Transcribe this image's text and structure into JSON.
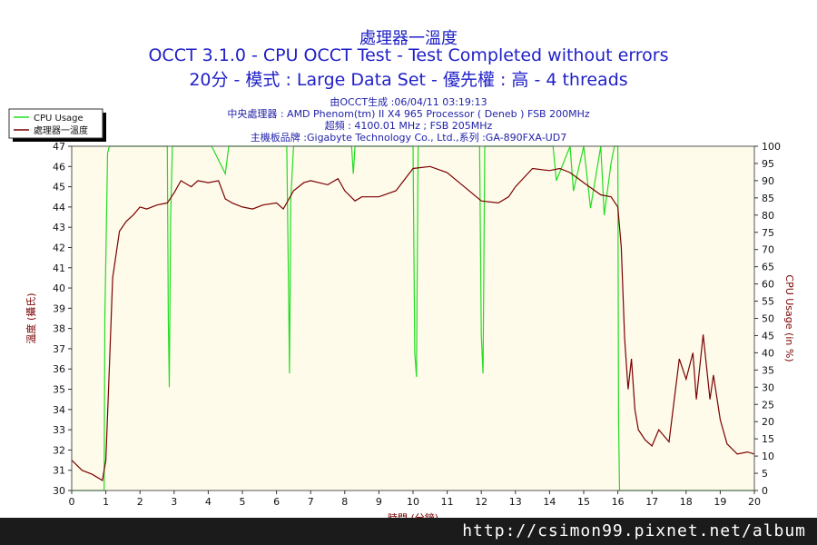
{
  "header": {
    "line1": "處理器一溫度",
    "line2": "OCCT 3.1.0 - CPU OCCT Test - Test Completed without errors",
    "line3": "20分 - 模式 : Large Data Set - 優先權 : 高 - 4 threads"
  },
  "info": {
    "generated": "由OCCT生成 :06/04/11 03:19:13",
    "cpu": "中央處理器 : AMD Phenom(tm) II X4 965 Processor ( Deneb ) FSB 200MHz",
    "clock": "超頻 : 4100.01 MHz ; FSB 205MHz",
    "board": "主機板品牌 :Gigabyte Technology Co., Ltd.,系列 :GA-890FXA-UD7"
  },
  "watermark": "http://csimon99.pixnet.net/album",
  "chart_data": {
    "type": "line",
    "xlabel": "時間 (分鐘)",
    "ylabel_left": "溫度 (攝氏)",
    "ylabel_right": "CPU Usage (in %)",
    "xlim": [
      0,
      20
    ],
    "ylim_left": [
      30,
      47
    ],
    "ylim_right": [
      0,
      100
    ],
    "grid": false,
    "legend_position": "top-left",
    "background_color": "#fffbea",
    "x_ticks": [
      "0",
      "1",
      "2",
      "3",
      "4",
      "5",
      "6",
      "7",
      "8",
      "9",
      "10",
      "11",
      "12",
      "13",
      "14",
      "15",
      "16",
      "17",
      "18",
      "19",
      "20"
    ],
    "left_ticks": [
      "30",
      "31",
      "32",
      "33",
      "34",
      "35",
      "36",
      "37",
      "38",
      "39",
      "40",
      "41",
      "42",
      "43",
      "44",
      "45",
      "46",
      "47"
    ],
    "right_ticks": [
      "0",
      "5",
      "10",
      "15",
      "20",
      "25",
      "30",
      "35",
      "40",
      "45",
      "50",
      "55",
      "60",
      "65",
      "70",
      "75",
      "80",
      "85",
      "90",
      "95",
      "100"
    ],
    "series": [
      {
        "name": "CPU Usage",
        "axis": "right",
        "color": "#22dd22",
        "x": [
          0,
          0.95,
          0.97,
          1.05,
          1.1,
          2.8,
          2.83,
          2.86,
          2.9,
          2.95,
          4.1,
          4.5,
          4.6,
          6.3,
          6.35,
          6.38,
          6.42,
          6.5,
          8.2,
          8.25,
          8.3,
          9.0,
          10.0,
          10.05,
          10.1,
          10.15,
          11.0,
          11.95,
          12.0,
          12.05,
          12.1,
          13.0,
          14.1,
          14.2,
          14.6,
          14.7,
          15.0,
          15.2,
          15.5,
          15.6,
          15.8,
          15.9,
          16.0,
          16.02,
          16.05,
          16.1,
          20.0
        ],
        "y": [
          0,
          0,
          50,
          98,
          100,
          100,
          50,
          30,
          80,
          100,
          100,
          92,
          100,
          100,
          60,
          34,
          85,
          100,
          100,
          92,
          100,
          100,
          100,
          40,
          33,
          100,
          100,
          100,
          45,
          34,
          100,
          100,
          100,
          90,
          100,
          87,
          100,
          82,
          100,
          80,
          95,
          100,
          100,
          20,
          0,
          0,
          0
        ]
      },
      {
        "name": "處理器一溫度",
        "axis": "left",
        "color": "#7a0000",
        "x": [
          0,
          0.3,
          0.6,
          0.9,
          1.0,
          1.1,
          1.2,
          1.4,
          1.6,
          1.8,
          2.0,
          2.2,
          2.5,
          2.8,
          3.0,
          3.2,
          3.5,
          3.7,
          4.0,
          4.3,
          4.5,
          4.7,
          5.0,
          5.3,
          5.6,
          6.0,
          6.2,
          6.5,
          6.8,
          7.0,
          7.5,
          7.8,
          8.0,
          8.3,
          8.5,
          9.0,
          9.5,
          10.0,
          10.5,
          11.0,
          11.5,
          12.0,
          12.5,
          12.8,
          13.0,
          13.5,
          14.0,
          14.3,
          14.6,
          15.0,
          15.5,
          15.8,
          16.0,
          16.1,
          16.2,
          16.3,
          16.4,
          16.5,
          16.6,
          16.8,
          17.0,
          17.2,
          17.5,
          17.8,
          18.0,
          18.2,
          18.3,
          18.5,
          18.7,
          18.8,
          19.0,
          19.2,
          19.5,
          19.8,
          20.0
        ],
        "y": [
          31.5,
          31.0,
          30.8,
          30.5,
          31.5,
          36.0,
          40.5,
          42.8,
          43.3,
          43.6,
          44.0,
          43.9,
          44.1,
          44.2,
          44.7,
          45.3,
          45.0,
          45.3,
          45.2,
          45.3,
          44.4,
          44.2,
          44.0,
          43.9,
          44.1,
          44.2,
          43.9,
          44.8,
          45.2,
          45.3,
          45.1,
          45.4,
          44.8,
          44.3,
          44.5,
          44.5,
          44.8,
          45.9,
          46.0,
          45.7,
          45.0,
          44.3,
          44.2,
          44.5,
          45.0,
          45.9,
          45.8,
          45.9,
          45.7,
          45.2,
          44.6,
          44.5,
          44.0,
          42.0,
          37.5,
          35.0,
          36.5,
          34.0,
          33.0,
          32.5,
          32.2,
          33.0,
          32.4,
          36.5,
          35.5,
          36.8,
          34.5,
          37.7,
          34.5,
          35.7,
          33.5,
          32.3,
          31.8,
          31.9,
          31.8
        ]
      }
    ]
  }
}
